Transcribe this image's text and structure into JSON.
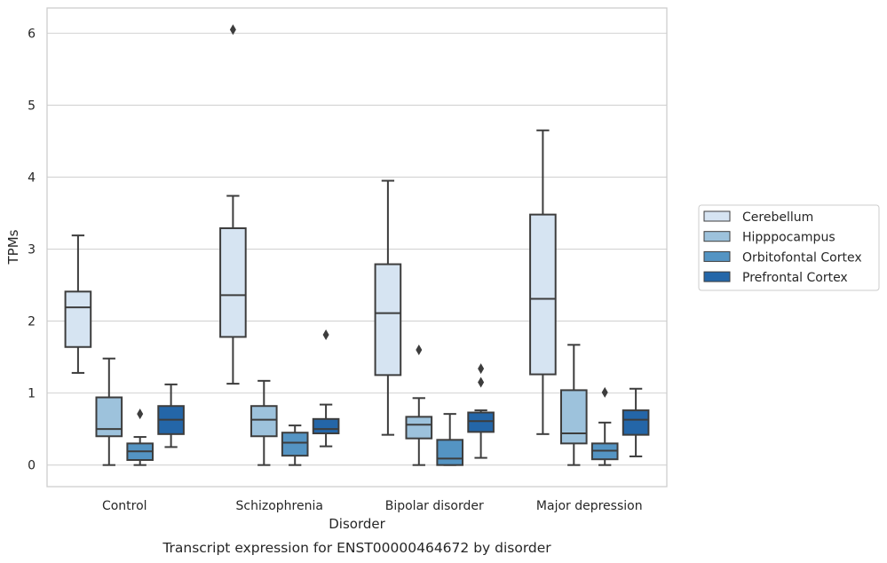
{
  "chart_data": {
    "type": "box",
    "caption": "Transcript expression for ENST00000464672 by disorder",
    "xlabel": "Disorder",
    "ylabel": "TPMs",
    "ylim": [
      -0.3,
      6.35
    ],
    "yticks": [
      0,
      1,
      2,
      3,
      4,
      5,
      6
    ],
    "grid": "horizontal",
    "legend_position": "right",
    "categories": [
      "Control",
      "Schizophrenia",
      "Bipolar disorder",
      "Major depression"
    ],
    "series": [
      {
        "name": "Cerebellum",
        "color": "#d6e4f2",
        "boxes": [
          {
            "whisker_low": 1.28,
            "q1": 1.64,
            "median": 2.19,
            "q3": 2.41,
            "whisker_high": 3.19,
            "outliers": []
          },
          {
            "whisker_low": 1.13,
            "q1": 1.78,
            "median": 2.36,
            "q3": 3.29,
            "whisker_high": 3.74,
            "outliers": [
              6.05
            ]
          },
          {
            "whisker_low": 0.42,
            "q1": 1.25,
            "median": 2.11,
            "q3": 2.79,
            "whisker_high": 3.95,
            "outliers": []
          },
          {
            "whisker_low": 0.43,
            "q1": 1.26,
            "median": 2.31,
            "q3": 3.48,
            "whisker_high": 4.65,
            "outliers": []
          }
        ]
      },
      {
        "name": "Hipppocampus",
        "color": "#9dc2dc",
        "boxes": [
          {
            "whisker_low": 0.0,
            "q1": 0.4,
            "median": 0.5,
            "q3": 0.94,
            "whisker_high": 1.48,
            "outliers": []
          },
          {
            "whisker_low": 0.0,
            "q1": 0.4,
            "median": 0.63,
            "q3": 0.82,
            "whisker_high": 1.17,
            "outliers": []
          },
          {
            "whisker_low": 0.0,
            "q1": 0.37,
            "median": 0.56,
            "q3": 0.67,
            "whisker_high": 0.93,
            "outliers": [
              1.6
            ]
          },
          {
            "whisker_low": 0.0,
            "q1": 0.3,
            "median": 0.44,
            "q3": 1.04,
            "whisker_high": 1.67,
            "outliers": []
          }
        ]
      },
      {
        "name": "Orbitofontal Cortex",
        "color": "#5494c3",
        "boxes": [
          {
            "whisker_low": 0.0,
            "q1": 0.07,
            "median": 0.19,
            "q3": 0.3,
            "whisker_high": 0.39,
            "outliers": [
              0.71
            ]
          },
          {
            "whisker_low": 0.0,
            "q1": 0.13,
            "median": 0.31,
            "q3": 0.45,
            "whisker_high": 0.55,
            "outliers": []
          },
          {
            "whisker_low": 0.0,
            "q1": 0.0,
            "median": 0.09,
            "q3": 0.35,
            "whisker_high": 0.71,
            "outliers": []
          },
          {
            "whisker_low": 0.0,
            "q1": 0.08,
            "median": 0.2,
            "q3": 0.3,
            "whisker_high": 0.59,
            "outliers": [
              1.01
            ]
          }
        ]
      },
      {
        "name": "Prefrontal Cortex",
        "color": "#2466a8",
        "boxes": [
          {
            "whisker_low": 0.25,
            "q1": 0.43,
            "median": 0.63,
            "q3": 0.82,
            "whisker_high": 1.12,
            "outliers": []
          },
          {
            "whisker_low": 0.26,
            "q1": 0.44,
            "median": 0.5,
            "q3": 0.64,
            "whisker_high": 0.84,
            "outliers": [
              1.81
            ]
          },
          {
            "whisker_low": 0.1,
            "q1": 0.46,
            "median": 0.61,
            "q3": 0.73,
            "whisker_high": 0.76,
            "outliers": [
              1.15,
              1.34
            ]
          },
          {
            "whisker_low": 0.12,
            "q1": 0.42,
            "median": 0.63,
            "q3": 0.76,
            "whisker_high": 1.06,
            "outliers": []
          }
        ]
      }
    ]
  }
}
